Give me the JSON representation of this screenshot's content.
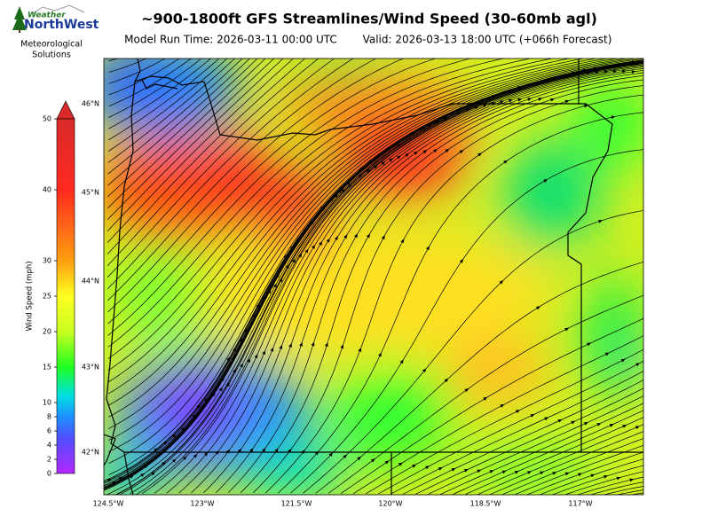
{
  "header": {
    "title": "~900-1800ft GFS Streamlines/Wind Speed (30-60mb agl)",
    "model_run": "Model Run Time: 2026-03-11 00:00 UTC",
    "valid": "Valid: 2026-03-13 18:00 UTC  (+066h Forecast)"
  },
  "logo": {
    "brand_top": "Weather",
    "brand": "NorthWest",
    "caption": [
      "Meteorological",
      "Solutions"
    ]
  },
  "colorbar": {
    "label": "Wind Speed (mph)",
    "range": [
      0,
      50
    ],
    "ticks": [
      0,
      2,
      4,
      6,
      8,
      10,
      15,
      20,
      25,
      30,
      40,
      50
    ]
  },
  "map": {
    "lat_labels": [
      "46°N",
      "45°N",
      "44°N",
      "43°N",
      "42°N"
    ],
    "lon_labels": [
      "124.5°W",
      "123°W",
      "121.5°W",
      "120°W",
      "118.5°W",
      "117°W"
    ]
  }
}
